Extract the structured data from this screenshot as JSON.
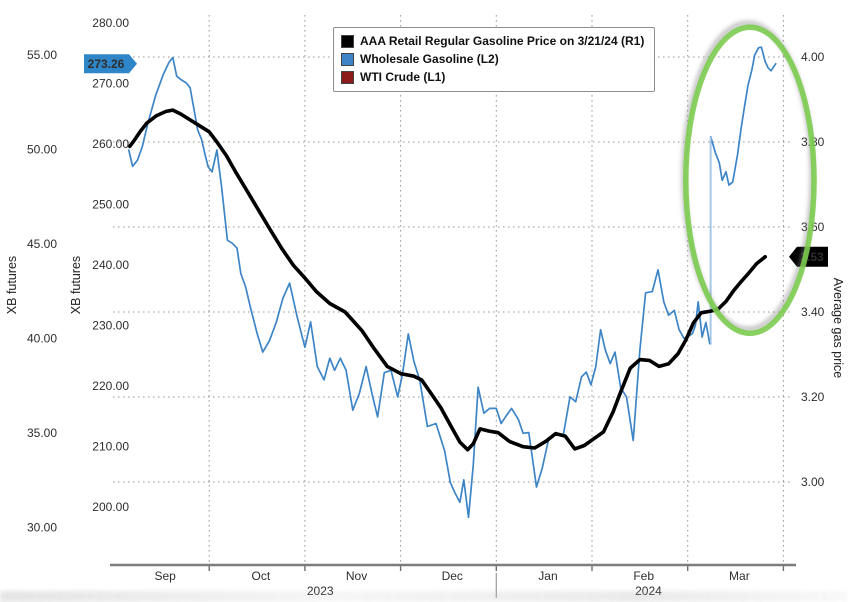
{
  "chart_data": {
    "type": "line",
    "title": "",
    "legend_position": "top-center",
    "grid": true,
    "background": "#ffffff",
    "legend": [
      {
        "label": "AAA Retail Regular Gasoline Price on 3/21/24 (R1)",
        "color": "#000000"
      },
      {
        "label": "Wholesale Gasoline (L2)",
        "color": "#3d85c6"
      },
      {
        "label": "WTI Crude (L1)",
        "color": "#8b1a1a"
      }
    ],
    "x_axis": {
      "month_labels": [
        "Sep",
        "Oct",
        "Nov",
        "Dec",
        "Jan",
        "Feb",
        "Mar"
      ],
      "year_labels": [
        "2023",
        "2024"
      ],
      "domain": "months since 2023-09-01",
      "range": [
        0,
        7
      ]
    },
    "axes": {
      "left_outer": {
        "title": "XB futures",
        "tick_labels": [
          "55.00",
          "50.00",
          "45.00",
          "40.00",
          "35.00",
          "30.00"
        ],
        "tick_values": [
          55,
          50,
          45,
          40,
          35,
          30
        ]
      },
      "left_inner": {
        "title": "XB futures",
        "tick_labels": [
          "280.00",
          "270.00",
          "260.00",
          "250.00",
          "240.00",
          "230.00",
          "220.00",
          "210.00",
          "200.00"
        ],
        "tick_values": [
          280,
          270,
          260,
          250,
          240,
          230,
          220,
          210,
          200
        ],
        "badge": {
          "label": "273.26",
          "value": 273.26,
          "color": "#2e86c8",
          "text_color": "#ffffff"
        }
      },
      "right": {
        "title": "Average gas price",
        "tick_labels": [
          "4.00",
          "3.80",
          "3.60",
          "3.40",
          "3.20",
          "3.00"
        ],
        "tick_values": [
          4.0,
          3.8,
          3.6,
          3.4,
          3.2,
          3.0
        ],
        "badge": {
          "label": "3.53",
          "value": 3.53,
          "color": "#000000",
          "text_color": "#ffffff"
        }
      }
    },
    "series": [
      {
        "name": "Wholesale Gasoline (L2)",
        "axis": "left_inner",
        "color": "#3d85c6",
        "line_width": 1.7,
        "points": [
          [
            0.16,
            259.0
          ],
          [
            0.2,
            256.3
          ],
          [
            0.25,
            257.3
          ],
          [
            0.3,
            259.5
          ],
          [
            0.36,
            263.5
          ],
          [
            0.44,
            268.0
          ],
          [
            0.52,
            271.5
          ],
          [
            0.58,
            273.5
          ],
          [
            0.62,
            274.3
          ],
          [
            0.66,
            271.2
          ],
          [
            0.71,
            270.6
          ],
          [
            0.76,
            270.1
          ],
          [
            0.8,
            269.3
          ],
          [
            0.84,
            265.8
          ],
          [
            0.88,
            262.3
          ],
          [
            0.92,
            260.8
          ],
          [
            0.96,
            258.0
          ],
          [
            0.99,
            256.2
          ],
          [
            1.03,
            255.4
          ],
          [
            1.08,
            259.0
          ],
          [
            1.13,
            252.9
          ],
          [
            1.19,
            244.1
          ],
          [
            1.24,
            243.6
          ],
          [
            1.29,
            242.8
          ],
          [
            1.33,
            238.6
          ],
          [
            1.38,
            236.4
          ],
          [
            1.43,
            233.0
          ],
          [
            1.5,
            228.7
          ],
          [
            1.56,
            225.6
          ],
          [
            1.63,
            227.5
          ],
          [
            1.7,
            230.5
          ],
          [
            1.77,
            234.5
          ],
          [
            1.84,
            237.0
          ],
          [
            1.92,
            231.4
          ],
          [
            2.0,
            226.4
          ],
          [
            2.06,
            230.6
          ],
          [
            2.13,
            223.2
          ],
          [
            2.2,
            221.0
          ],
          [
            2.26,
            224.6
          ],
          [
            2.31,
            222.6
          ],
          [
            2.37,
            224.6
          ],
          [
            2.43,
            222.6
          ],
          [
            2.5,
            216.0
          ],
          [
            2.57,
            218.8
          ],
          [
            2.64,
            223.2
          ],
          [
            2.7,
            218.8
          ],
          [
            2.76,
            214.9
          ],
          [
            2.83,
            222.2
          ],
          [
            2.9,
            222.6
          ],
          [
            2.97,
            218.2
          ],
          [
            3.02,
            222.0
          ],
          [
            3.08,
            228.6
          ],
          [
            3.14,
            224.0
          ],
          [
            3.2,
            221.0
          ],
          [
            3.28,
            213.3
          ],
          [
            3.37,
            213.8
          ],
          [
            3.46,
            209.3
          ],
          [
            3.52,
            204.0
          ],
          [
            3.57,
            202.3
          ],
          [
            3.62,
            200.8
          ],
          [
            3.66,
            204.5
          ],
          [
            3.71,
            198.3
          ],
          [
            3.76,
            207.0
          ],
          [
            3.81,
            219.8
          ],
          [
            3.87,
            215.5
          ],
          [
            3.93,
            216.3
          ],
          [
            4.0,
            216.3
          ],
          [
            4.05,
            213.8
          ],
          [
            4.1,
            215.0
          ],
          [
            4.16,
            216.3
          ],
          [
            4.23,
            214.5
          ],
          [
            4.28,
            212.2
          ],
          [
            4.34,
            212.3
          ],
          [
            4.42,
            203.3
          ],
          [
            4.48,
            206.4
          ],
          [
            4.55,
            211.4
          ],
          [
            4.62,
            211.9
          ],
          [
            4.7,
            211.9
          ],
          [
            4.77,
            218.2
          ],
          [
            4.83,
            217.4
          ],
          [
            4.89,
            221.5
          ],
          [
            4.94,
            222.3
          ],
          [
            4.99,
            220.2
          ],
          [
            5.04,
            223.2
          ],
          [
            5.09,
            229.3
          ],
          [
            5.14,
            225.9
          ],
          [
            5.19,
            223.7
          ],
          [
            5.24,
            225.6
          ],
          [
            5.3,
            219.7
          ],
          [
            5.36,
            218.2
          ],
          [
            5.43,
            211.0
          ],
          [
            5.5,
            226.0
          ],
          [
            5.56,
            235.4
          ],
          [
            5.63,
            235.6
          ],
          [
            5.69,
            239.2
          ],
          [
            5.75,
            233.9
          ],
          [
            5.8,
            231.7
          ],
          [
            5.86,
            232.5
          ],
          [
            5.91,
            229.3
          ],
          [
            5.96,
            227.9
          ],
          [
            6.0,
            228.1
          ],
          [
            6.05,
            228.7
          ],
          [
            6.08,
            230.0
          ],
          [
            6.11,
            233.9
          ],
          [
            6.15,
            228.1
          ],
          [
            6.19,
            230.5
          ],
          [
            6.23,
            227.0
          ],
          [
            6.24,
            227.0
          ],
          [
            6.24,
            261.2
          ],
          [
            6.29,
            258.5
          ],
          [
            6.33,
            256.9
          ],
          [
            6.36,
            254.0
          ],
          [
            6.4,
            255.4
          ],
          [
            6.43,
            253.2
          ],
          [
            6.47,
            253.7
          ],
          [
            6.52,
            258.2
          ],
          [
            6.56,
            262.8
          ],
          [
            6.6,
            266.8
          ],
          [
            6.63,
            269.7
          ],
          [
            6.67,
            272.2
          ],
          [
            6.7,
            274.7
          ],
          [
            6.74,
            275.9
          ],
          [
            6.77,
            276.0
          ],
          [
            6.81,
            273.6
          ],
          [
            6.84,
            272.6
          ],
          [
            6.87,
            272.1
          ],
          [
            6.9,
            272.8
          ],
          [
            6.92,
            273.26
          ]
        ],
        "gap_jump": {
          "t": 6.24,
          "from": 227.0,
          "to": 261.2,
          "color": "#a9c9e8"
        }
      },
      {
        "name": "AAA Retail Regular Gasoline Price (R1)",
        "axis": "right",
        "color": "#000000",
        "line_width": 3.6,
        "points": [
          [
            0.17,
            3.79
          ],
          [
            0.22,
            3.805
          ],
          [
            0.28,
            3.825
          ],
          [
            0.35,
            3.845
          ],
          [
            0.45,
            3.862
          ],
          [
            0.55,
            3.872
          ],
          [
            0.62,
            3.875
          ],
          [
            0.7,
            3.866
          ],
          [
            0.8,
            3.852
          ],
          [
            0.9,
            3.838
          ],
          [
            1.0,
            3.824
          ],
          [
            1.08,
            3.8
          ],
          [
            1.18,
            3.768
          ],
          [
            1.28,
            3.728
          ],
          [
            1.4,
            3.683
          ],
          [
            1.52,
            3.638
          ],
          [
            1.64,
            3.593
          ],
          [
            1.76,
            3.549
          ],
          [
            1.88,
            3.51
          ],
          [
            2.0,
            3.48
          ],
          [
            2.12,
            3.448
          ],
          [
            2.26,
            3.42
          ],
          [
            2.42,
            3.4
          ],
          [
            2.5,
            3.38
          ],
          [
            2.6,
            3.355
          ],
          [
            2.72,
            3.315
          ],
          [
            2.86,
            3.272
          ],
          [
            3.0,
            3.255
          ],
          [
            3.14,
            3.249
          ],
          [
            3.22,
            3.24
          ],
          [
            3.32,
            3.208
          ],
          [
            3.42,
            3.175
          ],
          [
            3.52,
            3.134
          ],
          [
            3.62,
            3.094
          ],
          [
            3.7,
            3.076
          ],
          [
            3.76,
            3.09
          ],
          [
            3.83,
            3.125
          ],
          [
            3.92,
            3.12
          ],
          [
            4.02,
            3.116
          ],
          [
            4.14,
            3.095
          ],
          [
            4.28,
            3.083
          ],
          [
            4.4,
            3.08
          ],
          [
            4.52,
            3.096
          ],
          [
            4.62,
            3.114
          ],
          [
            4.72,
            3.108
          ],
          [
            4.82,
            3.078
          ],
          [
            4.92,
            3.086
          ],
          [
            5.02,
            3.102
          ],
          [
            5.12,
            3.118
          ],
          [
            5.22,
            3.165
          ],
          [
            5.3,
            3.212
          ],
          [
            5.4,
            3.268
          ],
          [
            5.5,
            3.288
          ],
          [
            5.6,
            3.286
          ],
          [
            5.7,
            3.272
          ],
          [
            5.8,
            3.278
          ],
          [
            5.9,
            3.302
          ],
          [
            5.98,
            3.334
          ],
          [
            6.06,
            3.374
          ],
          [
            6.14,
            3.398
          ],
          [
            6.24,
            3.402
          ],
          [
            6.32,
            3.407
          ],
          [
            6.4,
            3.425
          ],
          [
            6.48,
            3.45
          ],
          [
            6.56,
            3.472
          ],
          [
            6.64,
            3.492
          ],
          [
            6.72,
            3.514
          ],
          [
            6.81,
            3.53
          ]
        ]
      },
      {
        "name": "WTI Crude (L1)",
        "axis": "left_outer",
        "color": "#8b1a1a",
        "line_width": 1.7,
        "points": []
      }
    ],
    "annotation_ellipse": {
      "color": "#7ccc4f",
      "center_t": 6.65,
      "center_value_right": 3.71,
      "t_radius": 0.67,
      "value_radius_right": 0.36
    }
  }
}
